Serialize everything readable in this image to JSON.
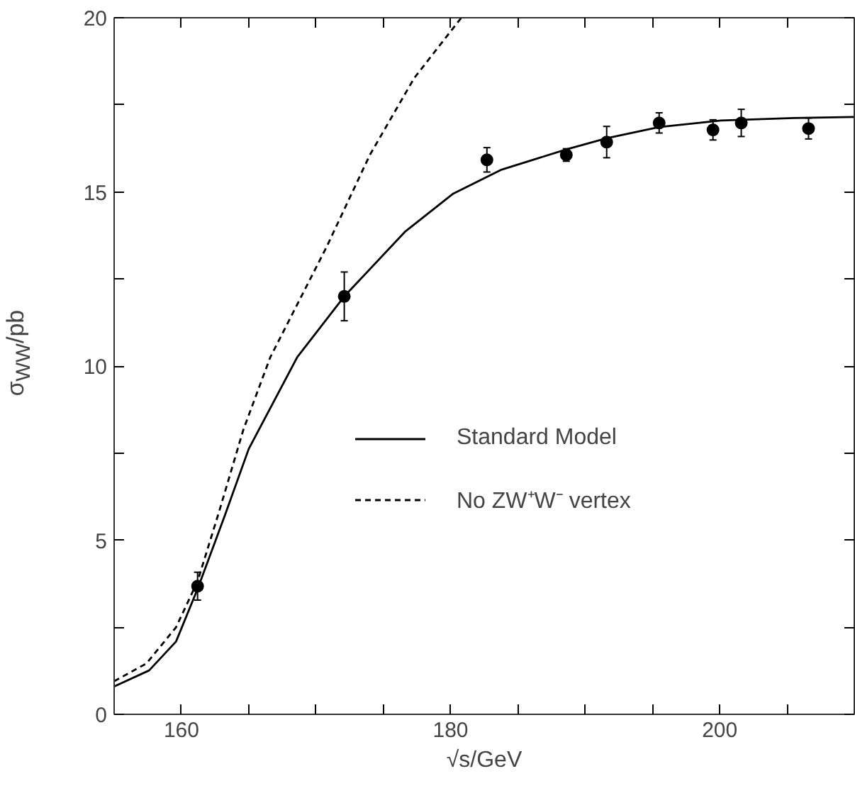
{
  "chart_data": {
    "type": "line",
    "xlabel": "√s/GeV",
    "ylabel": "σ$_{WW}$/pb",
    "xlim": [
      155,
      210
    ],
    "ylim": [
      0,
      20
    ],
    "xticks": [
      160,
      {
        "value": 165,
        "label": null
      },
      {
        "value": 170,
        "label": null
      },
      {
        "value": 175,
        "label": null
      },
      180,
      {
        "value": 185,
        "label": null
      },
      {
        "value": 190,
        "label": null
      },
      {
        "value": 195,
        "label": null
      },
      200,
      {
        "value": 205,
        "label": null
      }
    ],
    "yticks": [
      0,
      {
        "value": 2.5,
        "label": null
      },
      5,
      {
        "value": 7.5,
        "label": null
      },
      10,
      {
        "value": 12.5,
        "label": null
      },
      15,
      {
        "value": 17.5,
        "label": null
      },
      20
    ],
    "grid": false,
    "legend": "bottom right",
    "series": [
      {
        "name": "Standard Model",
        "type": "line",
        "line_style": "solid",
        "color": "#000000",
        "x": [
          155,
          157.6,
          159.6,
          161.2,
          163.2,
          165.0,
          168.6,
          172.1,
          176.6,
          180.2,
          183.8,
          188.6,
          191.6,
          195.5,
          200.1,
          205.5,
          210
        ],
        "values": [
          0.8,
          1.26,
          2.09,
          3.6,
          5.68,
          7.62,
          10.25,
          12.0,
          13.85,
          14.95,
          15.64,
          16.22,
          16.54,
          16.86,
          17.05,
          17.12,
          17.15
        ]
      },
      {
        "name": "No ZW⁺W⁻ vertex",
        "type": "line",
        "line_style": "dashed",
        "color": "#000000",
        "x": [
          155,
          157.4,
          159.6,
          161.2,
          162.8,
          164.6,
          166.6,
          170.8,
          174.0,
          177.3,
          180.8
        ],
        "values": [
          0.95,
          1.46,
          2.5,
          3.82,
          5.82,
          8.17,
          10.25,
          13.43,
          16.06,
          18.27,
          20.0
        ]
      },
      {
        "type": "scatter",
        "marker": "circle",
        "color": "#000000",
        "x": [
          161.2,
          172.1,
          182.7,
          188.6,
          191.6,
          195.5,
          199.5,
          201.6,
          206.6
        ],
        "values": [
          3.68,
          12.0,
          15.92,
          16.06,
          16.43,
          16.98,
          16.78,
          16.98,
          16.82
        ],
        "errors": [
          0.4,
          0.7,
          0.35,
          0.18,
          0.45,
          0.29,
          0.29,
          0.39,
          0.3
        ]
      }
    ]
  }
}
